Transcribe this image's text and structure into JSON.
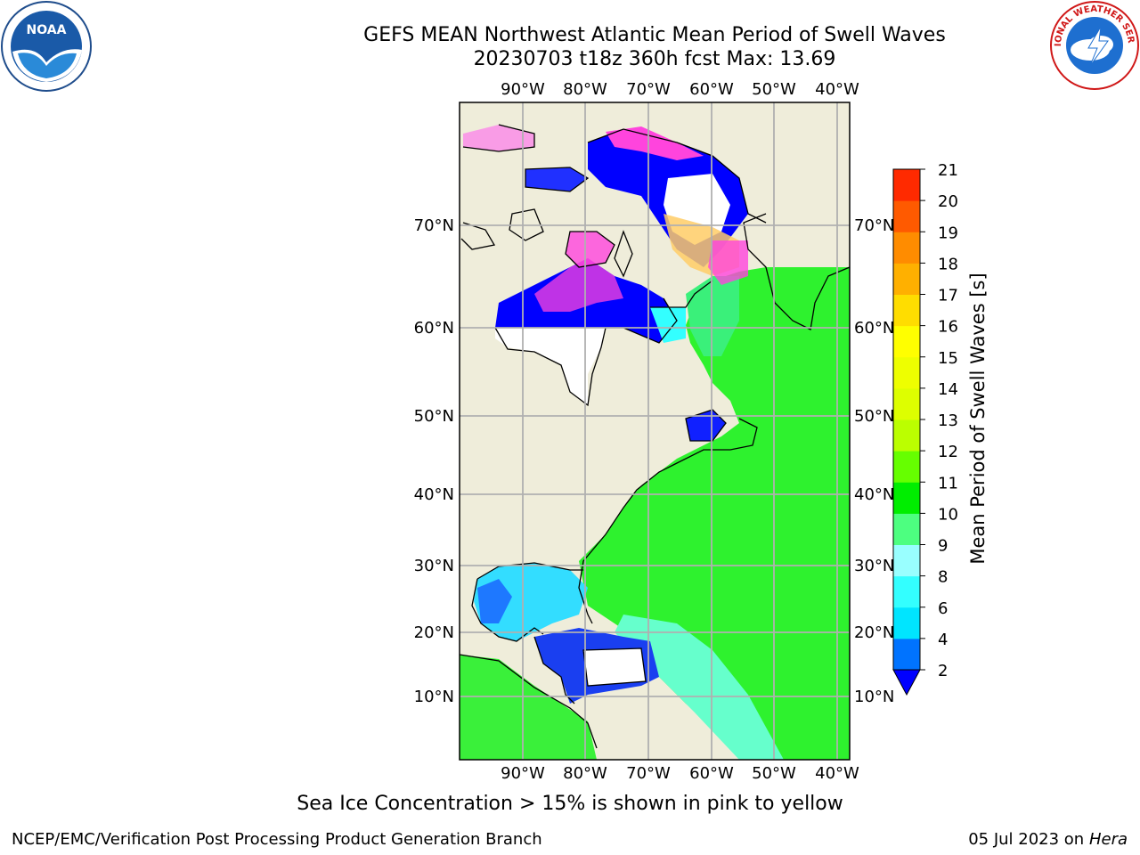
{
  "header": {
    "title_line1": "GEFS MEAN Northwest Atlantic Mean Period of Swell Waves",
    "title_line2": "20230703 t18z 360h fcst   Max: 13.69"
  },
  "logos": {
    "left": "noaa-logo",
    "right": "nws-logo",
    "noaa_text": "NOAA",
    "nws_text": "NATIONAL WEATHER SERVICE"
  },
  "map": {
    "lon_labels": [
      "90°W",
      "80°W",
      "70°W",
      "60°W",
      "50°W",
      "40°W"
    ],
    "lat_labels": [
      "70°N",
      "60°N",
      "50°N",
      "40°N",
      "30°N",
      "20°N",
      "10°N"
    ],
    "colors": {
      "land": "#efedda",
      "ice_free_white": "#ffffff",
      "grid": "#b0b0b0"
    }
  },
  "colorbar": {
    "title": "Mean Period of Swell Waves [s]",
    "ticks": [
      "2",
      "4",
      "6",
      "8",
      "9",
      "10",
      "11",
      "12",
      "13",
      "14",
      "15",
      "16",
      "17",
      "18",
      "19",
      "20",
      "21"
    ],
    "colors": [
      "#0073ff",
      "#00e5ff",
      "#33ffff",
      "#99ffff",
      "#4dff80",
      "#00ee00",
      "#66ff00",
      "#bbff00",
      "#ddff00",
      "#eeff00",
      "#ffff00",
      "#ffdd00",
      "#ffb000",
      "#ff8c00",
      "#ff5a00",
      "#ff2a00"
    ],
    "under_color": "#0000ff"
  },
  "footer": {
    "note": "Sea Ice Concentration > 15% is shown in pink to yellow",
    "left": "NCEP/EMC/Verification Post Processing Product Generation Branch",
    "right_date": "05 Jul 2023 on ",
    "right_host": "Hera"
  }
}
